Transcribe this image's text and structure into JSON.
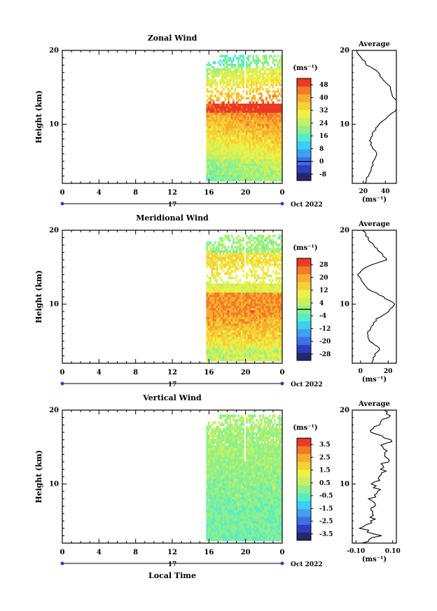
{
  "chart_data": [
    {
      "type": "heatmap",
      "title": "Zonal Wind",
      "ylabel": "Height (km)",
      "ylim": [
        2,
        20
      ],
      "yticks": [
        "10",
        "20"
      ],
      "xticks": [
        "0",
        "4",
        "8",
        "12",
        "16",
        "20",
        "0"
      ],
      "xlim": [
        0,
        24
      ],
      "date_label": "17",
      "date_right": "Oct 2022",
      "data_start_hour": 15.7,
      "colorbar": {
        "unit_label": "(ms⁻¹)",
        "ticks": [
          "48",
          "40",
          "32",
          "24",
          "16",
          "8",
          "0",
          "-8"
        ],
        "min": -12,
        "max": 52,
        "zero_line": 0
      },
      "profile_height": [
        2,
        3,
        4,
        5,
        6,
        7,
        8,
        9,
        10,
        11,
        12,
        13,
        14,
        15,
        16,
        17,
        18,
        19,
        20
      ],
      "profile": [
        22,
        24,
        27,
        29,
        33,
        28,
        26,
        30,
        34,
        42,
        50,
        52,
        46,
        44,
        38,
        34,
        24,
        18,
        14
      ],
      "average": {
        "title": "Average",
        "xticks": [
          "20",
          "40"
        ],
        "xtick_values": [
          20,
          40
        ],
        "xlim": [
          10,
          50
        ],
        "unit_label": "(ms⁻¹)"
      }
    },
    {
      "type": "heatmap",
      "title": "Meridional Wind",
      "ylabel": "Height (km)",
      "ylim": [
        2,
        20
      ],
      "yticks": [
        "10",
        "20"
      ],
      "xticks": [
        "0",
        "4",
        "8",
        "12",
        "16",
        "20",
        "0"
      ],
      "xlim": [
        0,
        24
      ],
      "date_label": "17",
      "date_right": "Oct 2022",
      "data_start_hour": 15.7,
      "colorbar": {
        "unit_label": "(ms⁻¹)",
        "ticks": [
          "28",
          "20",
          "12",
          "4",
          "-4",
          "-12",
          "-20",
          "-28"
        ],
        "min": -32,
        "max": 32,
        "zero_line": 0
      },
      "profile_height": [
        2,
        3,
        4,
        5,
        6,
        7,
        8,
        9,
        10,
        11,
        12,
        13,
        14,
        15,
        16,
        17,
        18,
        19,
        20
      ],
      "profile": [
        8,
        10,
        14,
        6,
        5,
        8,
        12,
        20,
        25,
        16,
        6,
        1,
        -2,
        4,
        19,
        14,
        9,
        5,
        2
      ],
      "average": {
        "title": "Average",
        "xticks": [
          "0",
          "20"
        ],
        "xtick_values": [
          0,
          20
        ],
        "xlim": [
          -6,
          26
        ],
        "unit_label": "(ms⁻¹)"
      }
    },
    {
      "type": "heatmap",
      "title": "Vertical Wind",
      "ylabel": "Height (km)",
      "ylim": [
        2,
        20
      ],
      "yticks": [
        "10",
        "20"
      ],
      "xticks": [
        "0",
        "4",
        "8",
        "12",
        "16",
        "20",
        "0"
      ],
      "xlim": [
        0,
        24
      ],
      "date_label": "17",
      "date_right": "Oct 2022",
      "xlabel": "Local Time",
      "data_start_hour": 15.7,
      "colorbar": {
        "unit_label": "(ms⁻¹)",
        "ticks": [
          "3.5",
          "2.5",
          "1.5",
          "0.5",
          "-0.5",
          "-1.5",
          "-2.5",
          "-3.5"
        ],
        "min": -4,
        "max": 4,
        "zero_line": null
      },
      "profile_height": [
        2,
        3,
        4,
        5,
        6,
        7,
        8,
        9,
        10,
        11,
        12,
        13,
        14,
        15,
        16,
        17,
        18,
        19,
        20
      ],
      "profile": [
        -0.05,
        0.02,
        -0.06,
        0.0,
        -0.03,
        0.01,
        -0.02,
        0.02,
        0.0,
        0.03,
        0.05,
        0.06,
        0.07,
        0.04,
        0.09,
        -0.01,
        0.02,
        0.08,
        0.06
      ],
      "average": {
        "title": "Average",
        "xticks": [
          "-0.10",
          "0.10"
        ],
        "xtick_values": [
          -0.1,
          0.1
        ],
        "xlim": [
          -0.12,
          0.12
        ],
        "unit_label": "(ms⁻¹)"
      }
    }
  ]
}
